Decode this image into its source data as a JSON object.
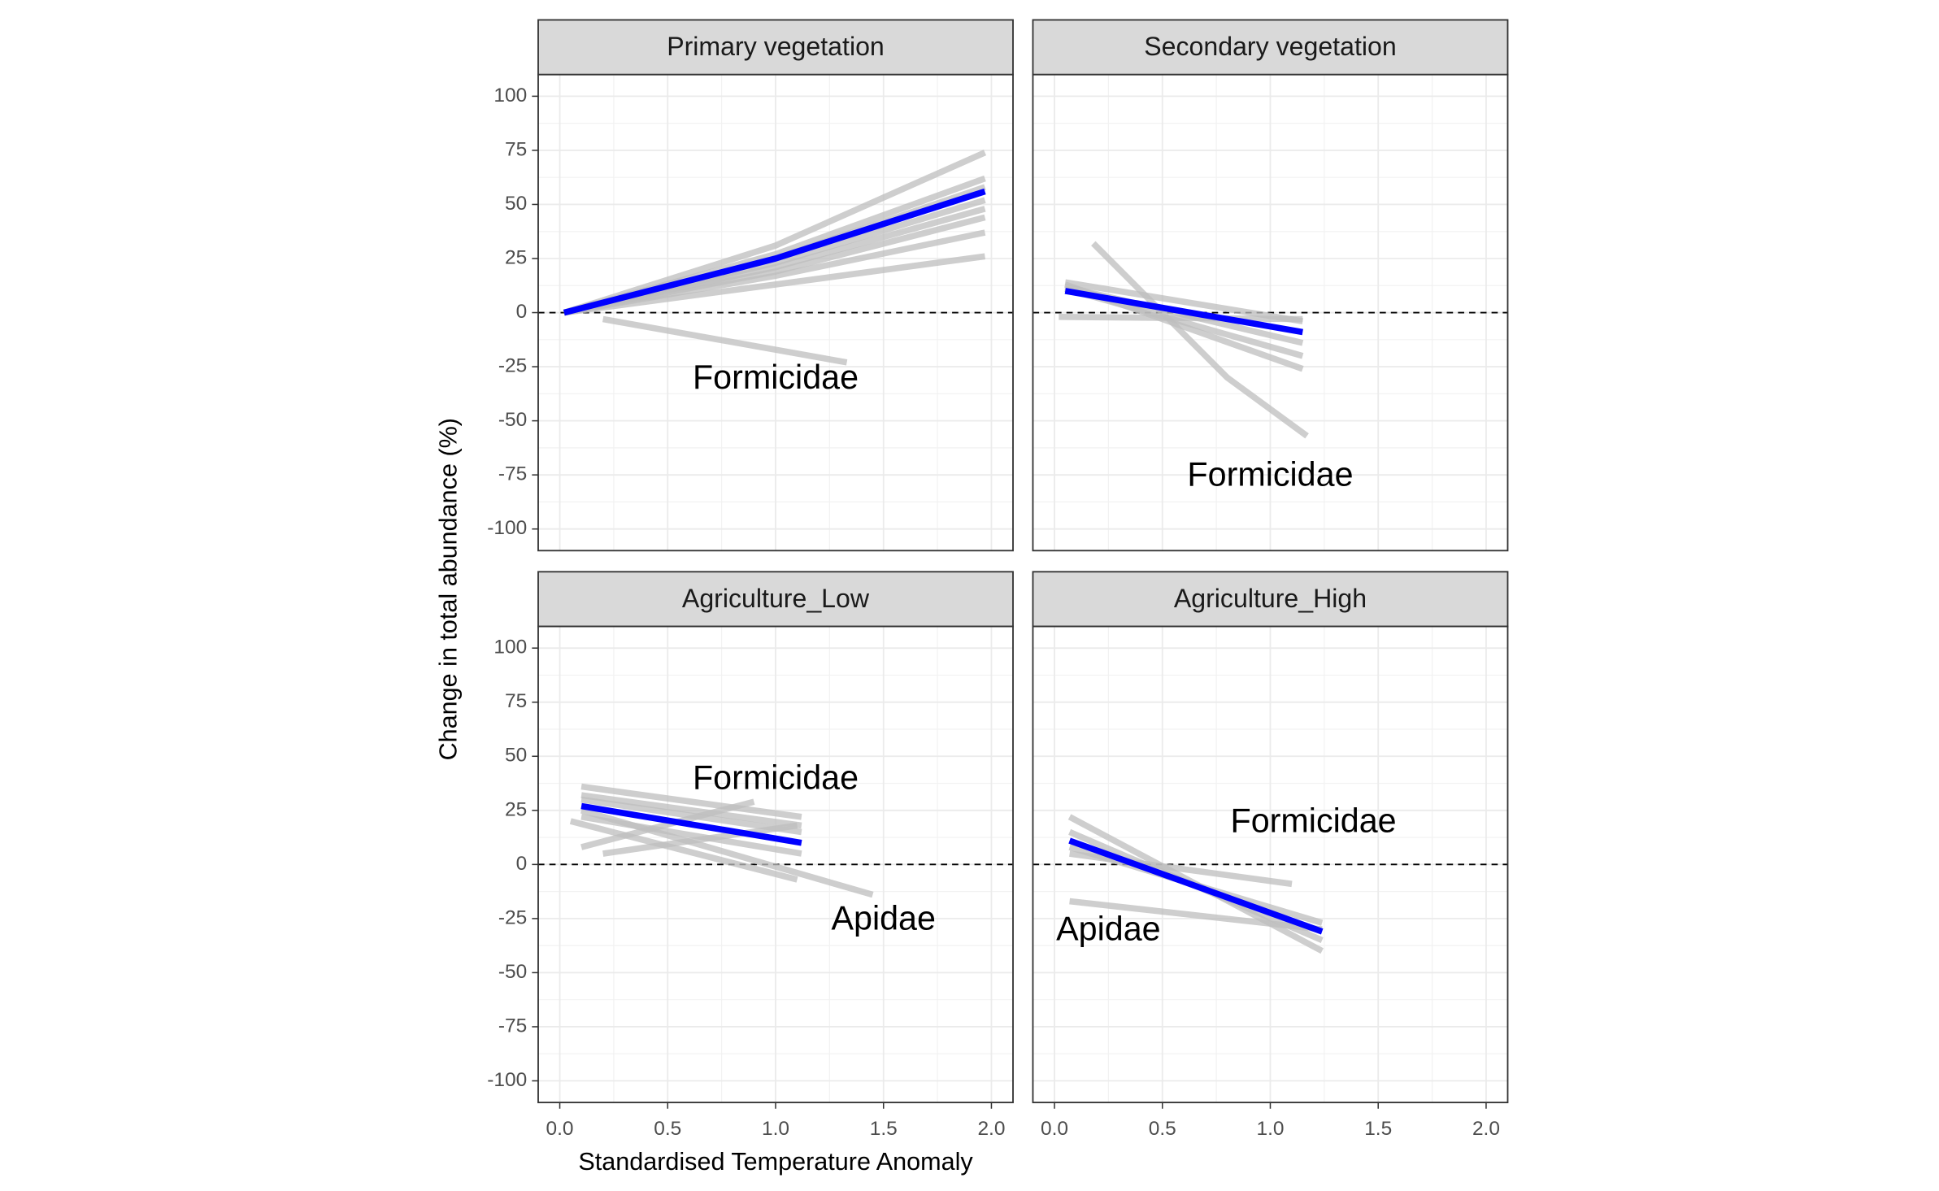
{
  "xlabel": "Standardised Temperature Anomaly",
  "ylabel": "Change in total abundance (%)",
  "chart_data": [
    {
      "type": "line",
      "title": "Primary vegetation",
      "xlim": [
        -0.1,
        2.1
      ],
      "ylim": [
        -110,
        110
      ],
      "xticks": [
        {
          "value": 0,
          "label": "0.0"
        },
        0.5,
        {
          "value": 1,
          "label": "1.0"
        },
        1.5,
        {
          "value": 2,
          "label": "2.0"
        }
      ],
      "yticks": [
        -100,
        -75,
        -50,
        -25,
        0,
        25,
        50,
        75,
        100
      ],
      "hline": 0,
      "grid": true,
      "series": [
        {
          "color": "#bdbdbd",
          "x": [
            0.02,
            1,
            1.97
          ],
          "values": [
            0,
            31,
            74
          ]
        },
        {
          "color": "#bdbdbd",
          "x": [
            0.02,
            1,
            1.97
          ],
          "values": [
            0,
            27,
            62
          ]
        },
        {
          "color": "#bdbdbd",
          "x": [
            0.02,
            1,
            1.97
          ],
          "values": [
            0,
            25,
            58
          ]
        },
        {
          "color": "#bdbdbd",
          "x": [
            0.02,
            1,
            1.97
          ],
          "values": [
            0,
            23,
            52
          ]
        },
        {
          "color": "#bdbdbd",
          "x": [
            0.02,
            1,
            1.97
          ],
          "values": [
            0,
            21,
            48
          ]
        },
        {
          "color": "#bdbdbd",
          "x": [
            0.02,
            1,
            1.97
          ],
          "values": [
            0,
            19,
            44
          ]
        },
        {
          "color": "#bdbdbd",
          "x": [
            0.02,
            1,
            1.97
          ],
          "values": [
            0,
            17,
            37
          ]
        },
        {
          "color": "#bdbdbd",
          "x": [
            0.02,
            1,
            1.97
          ],
          "values": [
            0,
            13,
            26
          ]
        },
        {
          "color": "#bdbdbd",
          "x": [
            0.2,
            1.33
          ],
          "values": [
            -3,
            -23
          ]
        },
        {
          "color": "#0000ff",
          "x": [
            0.02,
            1,
            1.97
          ],
          "values": [
            0,
            25,
            56
          ]
        }
      ],
      "annotations": [
        {
          "text": "Formicidae",
          "x": 1.0,
          "y": -31
        }
      ]
    },
    {
      "type": "line",
      "title": "Secondary vegetation",
      "xlim": [
        -0.1,
        2.1
      ],
      "ylim": [
        -110,
        110
      ],
      "xticks": [
        {
          "value": 0,
          "label": "0.0"
        },
        0.5,
        {
          "value": 1,
          "label": "1.0"
        },
        1.5,
        {
          "value": 2,
          "label": "2.0"
        }
      ],
      "yticks": [
        -100,
        -75,
        -50,
        -25,
        0,
        25,
        50,
        75,
        100
      ],
      "hline": 0,
      "grid": true,
      "series": [
        {
          "color": "#bdbdbd",
          "x": [
            0.02,
            1.15
          ],
          "values": [
            -2,
            -3
          ]
        },
        {
          "color": "#bdbdbd",
          "x": [
            0.05,
            1.15
          ],
          "values": [
            14,
            -4
          ]
        },
        {
          "color": "#bdbdbd",
          "x": [
            0.05,
            1.15
          ],
          "values": [
            12,
            -14
          ]
        },
        {
          "color": "#bdbdbd",
          "x": [
            0.05,
            1.15
          ],
          "values": [
            11,
            -20
          ]
        },
        {
          "color": "#bdbdbd",
          "x": [
            0.05,
            1.15
          ],
          "values": [
            13,
            -26
          ]
        },
        {
          "color": "#bdbdbd",
          "x": [
            0.18,
            0.5,
            0.8,
            1.17
          ],
          "values": [
            32,
            0,
            -30,
            -57
          ]
        },
        {
          "color": "#0000ff",
          "x": [
            0.05,
            1.15
          ],
          "values": [
            10,
            -9
          ]
        }
      ],
      "annotations": [
        {
          "text": "Formicidae",
          "x": 1.0,
          "y": -76
        }
      ]
    },
    {
      "type": "line",
      "title": "Agriculture_Low",
      "xlim": [
        -0.1,
        2.1
      ],
      "ylim": [
        -110,
        110
      ],
      "xticks": [
        {
          "value": 0,
          "label": "0.0"
        },
        0.5,
        {
          "value": 1,
          "label": "1.0"
        },
        1.5,
        {
          "value": 2,
          "label": "2.0"
        }
      ],
      "yticks": [
        -100,
        -75,
        -50,
        -25,
        0,
        25,
        50,
        75,
        100
      ],
      "hline": 0,
      "grid": true,
      "series": [
        {
          "color": "#bdbdbd",
          "x": [
            0.1,
            1.12
          ],
          "values": [
            36,
            22
          ]
        },
        {
          "color": "#bdbdbd",
          "x": [
            0.1,
            1.12
          ],
          "values": [
            32,
            18
          ]
        },
        {
          "color": "#bdbdbd",
          "x": [
            0.1,
            1.12
          ],
          "values": [
            30,
            15
          ]
        },
        {
          "color": "#bdbdbd",
          "x": [
            0.1,
            1.12
          ],
          "values": [
            22,
            5
          ]
        },
        {
          "color": "#bdbdbd",
          "x": [
            0.05,
            1.1
          ],
          "values": [
            20,
            -7
          ]
        },
        {
          "color": "#bdbdbd",
          "x": [
            0.1,
            1.45
          ],
          "values": [
            25,
            -14
          ]
        },
        {
          "color": "#bdbdbd",
          "x": [
            0.1,
            0.9
          ],
          "values": [
            8,
            29
          ]
        },
        {
          "color": "#bdbdbd",
          "x": [
            0.2,
            1.1
          ],
          "values": [
            5,
            18
          ]
        },
        {
          "color": "#0000ff",
          "x": [
            0.1,
            1.12
          ],
          "values": [
            27,
            10
          ]
        }
      ],
      "annotations": [
        {
          "text": "Formicidae",
          "x": 1.0,
          "y": 39
        },
        {
          "text": "Apidae",
          "x": 1.5,
          "y": -26
        }
      ]
    },
    {
      "type": "line",
      "title": "Agriculture_High",
      "xlim": [
        -0.1,
        2.1
      ],
      "ylim": [
        -110,
        110
      ],
      "xticks": [
        {
          "value": 0,
          "label": "0.0"
        },
        0.5,
        {
          "value": 1,
          "label": "1.0"
        },
        1.5,
        {
          "value": 2,
          "label": "2.0"
        }
      ],
      "yticks": [
        -100,
        -75,
        -50,
        -25,
        0,
        25,
        50,
        75,
        100
      ],
      "hline": 0,
      "grid": true,
      "series": [
        {
          "color": "#bdbdbd",
          "x": [
            0.07,
            1.24
          ],
          "values": [
            22,
            -40
          ]
        },
        {
          "color": "#bdbdbd",
          "x": [
            0.07,
            1.24
          ],
          "values": [
            15,
            -35
          ]
        },
        {
          "color": "#bdbdbd",
          "x": [
            0.07,
            1.24
          ],
          "values": [
            8,
            -27
          ]
        },
        {
          "color": "#bdbdbd",
          "x": [
            0.07,
            1.24
          ],
          "values": [
            -17,
            -30
          ]
        },
        {
          "color": "#bdbdbd",
          "x": [
            0.07,
            1.1
          ],
          "values": [
            5,
            -9
          ]
        },
        {
          "color": "#0000ff",
          "x": [
            0.07,
            1.24
          ],
          "values": [
            11,
            -31
          ]
        }
      ],
      "annotations": [
        {
          "text": "Formicidae",
          "x": 1.2,
          "y": 19
        },
        {
          "text": "Apidae",
          "x": 0.25,
          "y": -31
        }
      ]
    }
  ]
}
